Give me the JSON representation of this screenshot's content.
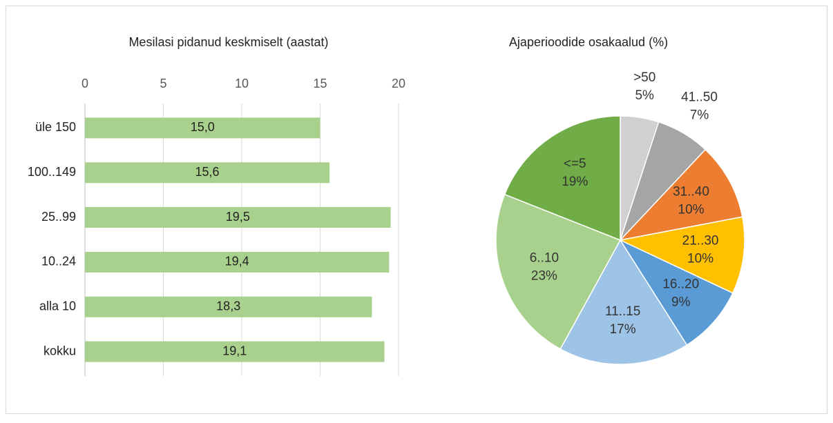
{
  "chart_data": [
    {
      "type": "hbar",
      "title": "Mesilasi pidanud keskmiselt (aastat)",
      "categories": [
        "üle 150",
        "100..149",
        "25..99",
        "10..24",
        "alla 10",
        "kokku"
      ],
      "values": [
        15.0,
        15.6,
        19.5,
        19.4,
        18.3,
        19.1
      ],
      "value_labels": [
        "15,0",
        "15,6",
        "19,5",
        "19,4",
        "18,3",
        "19,1"
      ],
      "color": "#a9d18e",
      "xlim": [
        0,
        20
      ],
      "xticks": [
        0,
        5,
        10,
        15,
        20
      ],
      "grid": true
    },
    {
      "type": "pie",
      "title": "Ajaperioodide osakaalud (%)",
      "categories": [
        ">50",
        "41..50",
        "31..40",
        "21..30",
        "16..20",
        "11..15",
        "6..10",
        "<=5"
      ],
      "values": [
        5,
        7,
        10,
        10,
        9,
        17,
        23,
        19
      ],
      "value_labels": [
        "5%",
        "7%",
        "10%",
        "10%",
        "9%",
        "17%",
        "23%",
        "19%"
      ],
      "colors": [
        "#d0d0d0",
        "#a5a5a5",
        "#ed7d31",
        "#ffc000",
        "#5b9bd5",
        "#9dc3e6",
        "#a9d18e",
        "#70ad47"
      ]
    }
  ]
}
